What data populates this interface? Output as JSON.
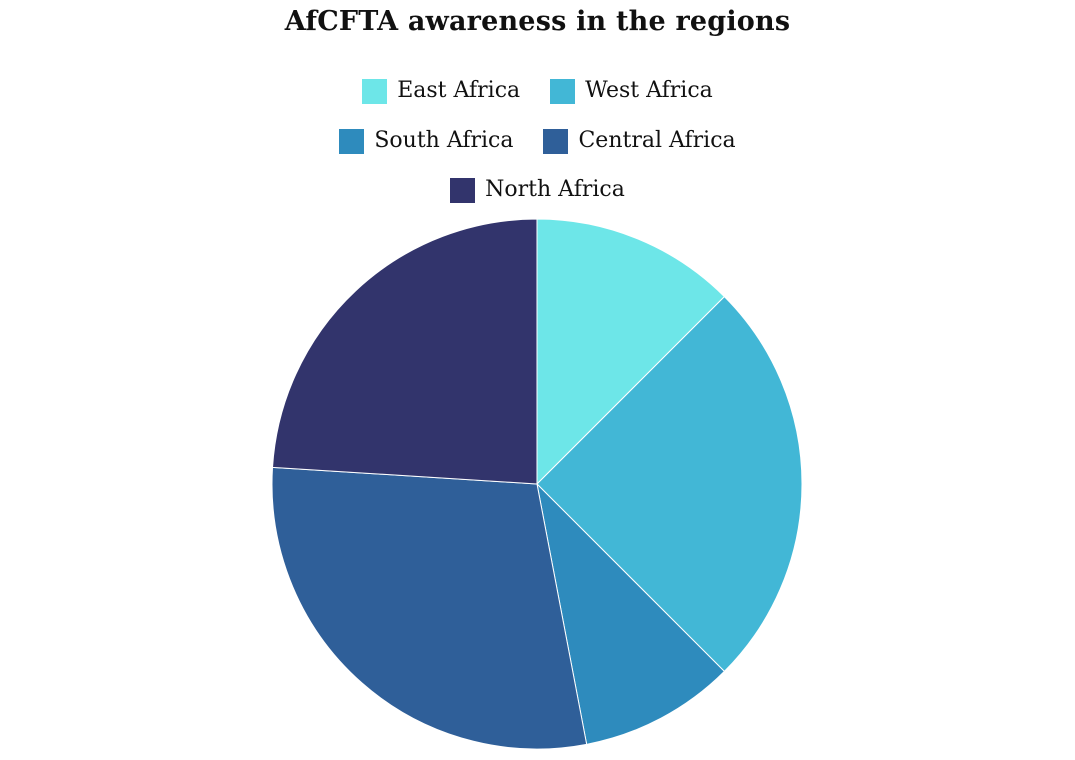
{
  "chart_data": {
    "type": "pie",
    "title": "AfCFTA awareness in the regions",
    "legend_position": "top",
    "slices": [
      {
        "label": "East Africa",
        "value": 12.5,
        "color": "#6de6e8"
      },
      {
        "label": "West Africa",
        "value": 25.0,
        "color": "#42b7d6"
      },
      {
        "label": "South Africa",
        "value": 9.5,
        "color": "#2e8bbd"
      },
      {
        "label": "Central Africa",
        "value": 29.0,
        "color": "#2f5f99"
      },
      {
        "label": "North Africa",
        "value": 24.0,
        "color": "#32346c"
      }
    ]
  }
}
